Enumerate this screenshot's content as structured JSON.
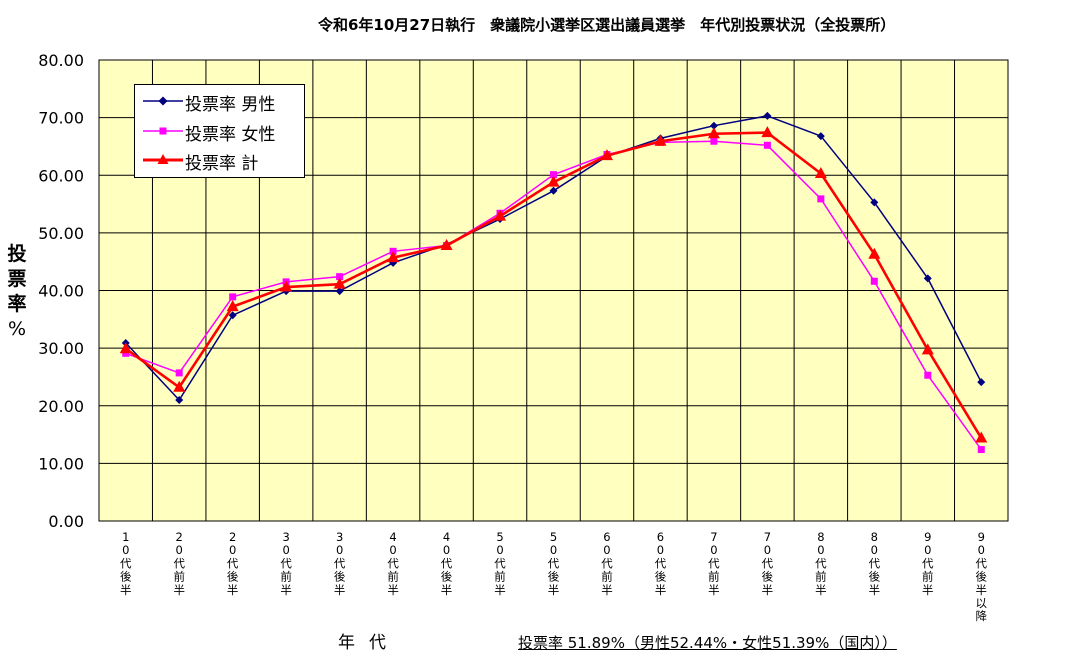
{
  "title": "令和6年10月27日執行　衆議院小選挙区選出議員選挙　年代別投票状況（全投票所）",
  "ylabel": {
    "text": "投票率",
    "unit": "%"
  },
  "xlabel": "年代",
  "footnote": "投票率 51.89%（男性52.44%・女性51.39%（国内））",
  "colors": {
    "plot_bg": "#ffffc0",
    "male": "#000080",
    "female": "#ff00ff",
    "total": "#ff0000"
  },
  "chart_data": {
    "type": "line",
    "title": "令和6年10月27日執行　衆議院小選挙区選出議員選挙　年代別投票状況（全投票所）",
    "xlabel": "年代",
    "ylabel": "投票率%",
    "ylim": [
      0,
      80
    ],
    "yticks": [
      "0.00",
      "10.00",
      "20.00",
      "30.00",
      "40.00",
      "50.00",
      "60.00",
      "70.00",
      "80.00"
    ],
    "grid": true,
    "legend_position": "top-left",
    "categories": [
      "10代後半",
      "20代前半",
      "20代後半",
      "30代前半",
      "30代後半",
      "40代前半",
      "40代後半",
      "50代前半",
      "50代後半",
      "60代前半",
      "60代後半",
      "70代前半",
      "70代後半",
      "80代前半",
      "80代後半",
      "90代前半",
      "90代後半以降"
    ],
    "series": [
      {
        "name": "投票率 男性",
        "color": "#000080",
        "marker": "diamond",
        "values": [
          30.9,
          21.0,
          35.7,
          39.9,
          39.9,
          44.8,
          48.0,
          52.4,
          57.3,
          63.3,
          66.4,
          68.6,
          70.3,
          66.8,
          55.3,
          42.1,
          24.1
        ]
      },
      {
        "name": "投票率 女性",
        "color": "#ff00ff",
        "marker": "square",
        "values": [
          29.1,
          25.7,
          38.9,
          41.5,
          42.4,
          46.8,
          47.8,
          53.4,
          60.1,
          63.6,
          65.7,
          65.9,
          65.2,
          55.9,
          41.6,
          25.3,
          12.4
        ]
      },
      {
        "name": "投票率 計",
        "color": "#ff0000",
        "marker": "triangle",
        "values": [
          29.9,
          23.2,
          37.2,
          40.6,
          41.1,
          45.7,
          47.8,
          52.9,
          58.8,
          63.4,
          65.9,
          67.2,
          67.4,
          60.3,
          46.3,
          29.7,
          14.4
        ]
      }
    ]
  }
}
